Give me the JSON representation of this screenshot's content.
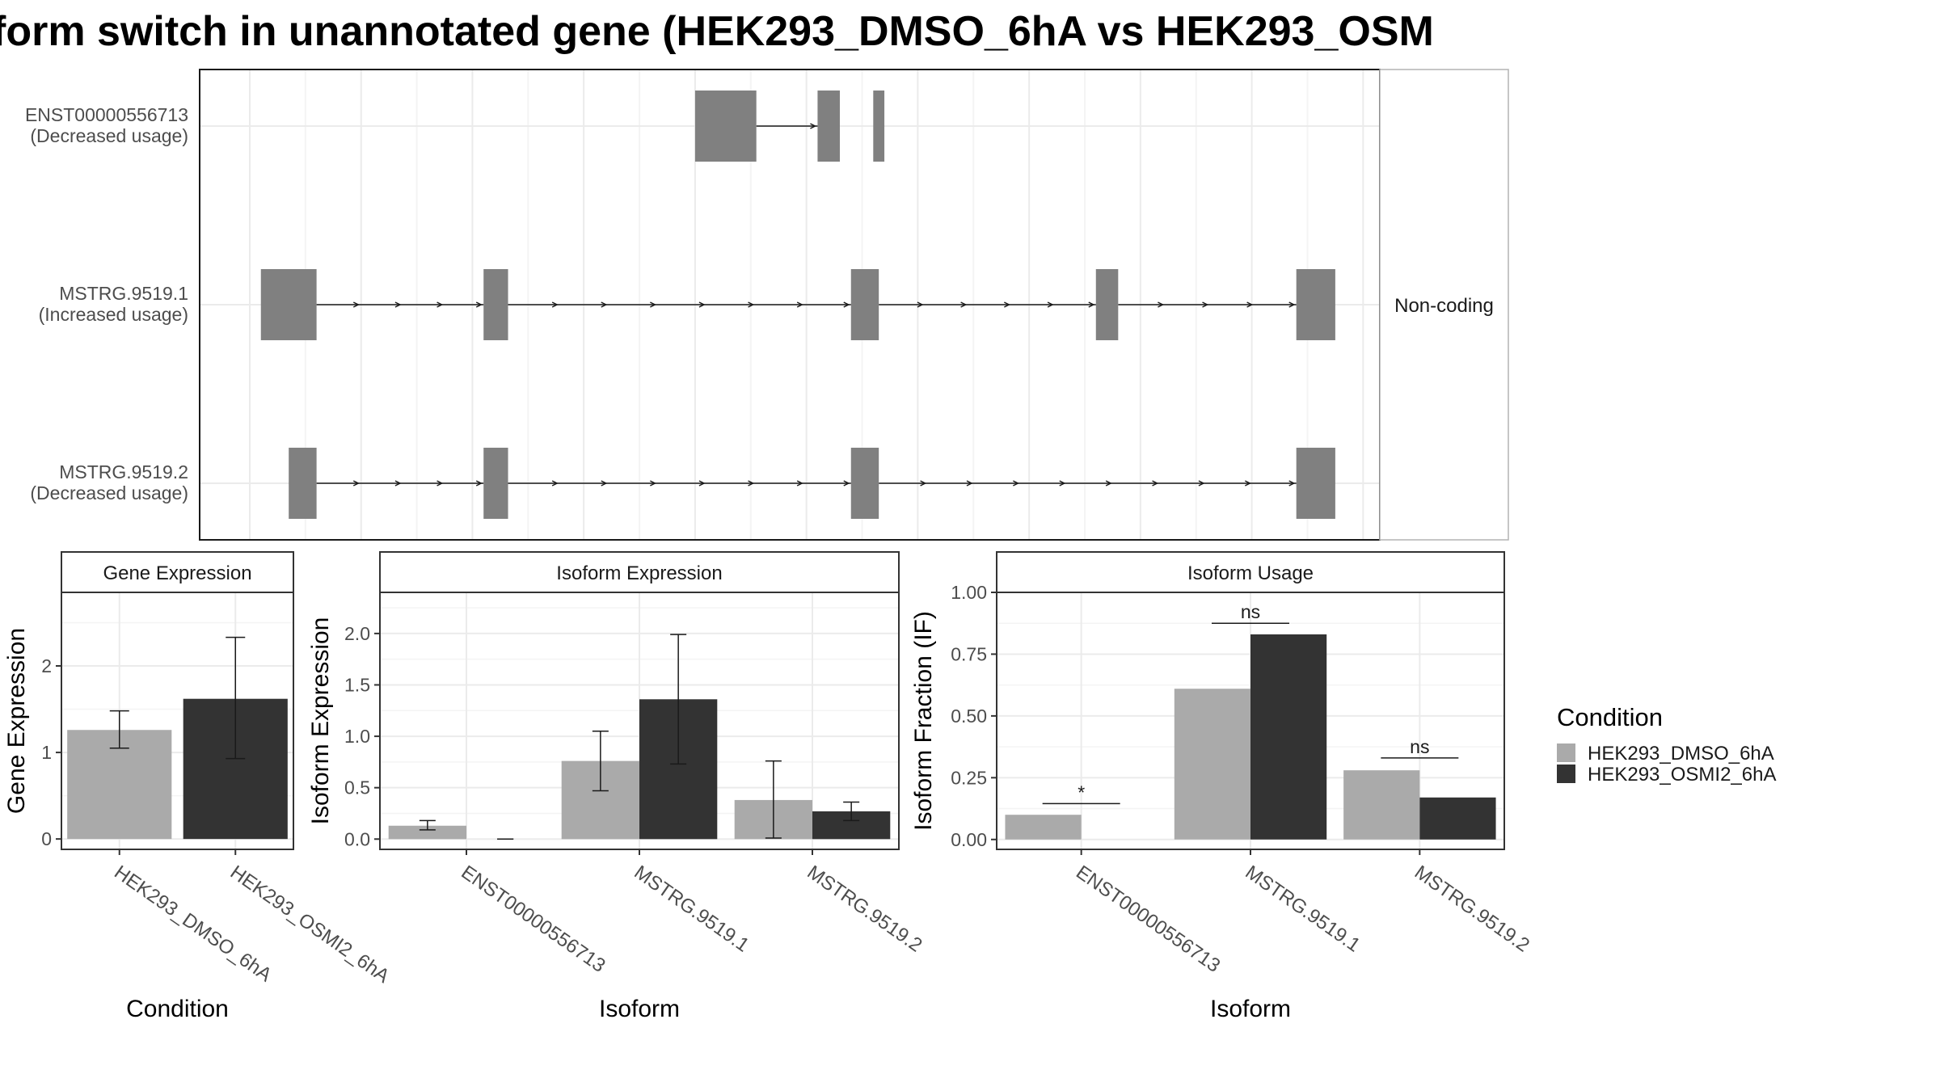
{
  "title": "form switch in unannotated gene (HEK293_DMSO_6hA vs HEK293_OSM",
  "colors": {
    "condition1": "#aaaaaa",
    "condition2": "#333333",
    "exon": "#808080",
    "panel_border": "#333333",
    "strip_fill": "#ffffff",
    "grid": "#ebebeb"
  },
  "chart_data": [
    {
      "type": "gene-structure",
      "strip_label": "Non-coding",
      "transcripts": [
        {
          "id": "ENST00000556713",
          "label_line1": "ENST00000556713",
          "label_line2": "(Decreased usage)",
          "exons": [
            [
              5.0,
              5.55
            ],
            [
              6.1,
              6.3
            ],
            [
              6.6,
              6.7
            ]
          ],
          "arrow_segments": [
            [
              5.55,
              6.1
            ]
          ]
        },
        {
          "id": "MSTRG.9519.1",
          "label_line1": "MSTRG.9519.1",
          "label_line2": "(Increased usage)",
          "exons": [
            [
              1.1,
              1.6
            ],
            [
              3.1,
              3.32
            ],
            [
              6.4,
              6.65
            ],
            [
              8.6,
              8.8
            ],
            [
              10.4,
              10.75
            ]
          ],
          "arrow_segments": [
            [
              1.6,
              3.1
            ],
            [
              3.32,
              6.4
            ],
            [
              6.65,
              8.6
            ],
            [
              8.8,
              10.4
            ]
          ]
        },
        {
          "id": "MSTRG.9519.2",
          "label_line1": "MSTRG.9519.2",
          "label_line2": "(Decreased usage)",
          "exons": [
            [
              1.35,
              1.6
            ],
            [
              3.1,
              3.32
            ],
            [
              6.4,
              6.65
            ],
            [
              10.4,
              10.75
            ]
          ],
          "arrow_segments": [
            [
              1.6,
              3.1
            ],
            [
              3.32,
              6.4
            ],
            [
              6.65,
              10.4
            ]
          ]
        }
      ],
      "xlim": [
        0.55,
        11.15
      ]
    },
    {
      "type": "bar",
      "strip_label": "Gene Expression",
      "xlabel": "Condition",
      "ylabel": "Gene Expression",
      "categories": [
        "HEK293_DMSO_6hA",
        "HEK293_OSMI2_6hA"
      ],
      "values": [
        1.26,
        1.62
      ],
      "errors": [
        [
          1.05,
          1.48
        ],
        [
          0.93,
          2.33
        ]
      ],
      "yticks": [
        "0",
        "1",
        "2"
      ],
      "ytick_values": [
        0,
        1,
        2
      ],
      "ylim": [
        -0.12,
        2.85
      ]
    },
    {
      "type": "bar",
      "strip_label": "Isoform Expression",
      "xlabel": "Isoform",
      "ylabel": "Isoform Expression",
      "categories": [
        "ENST00000556713",
        "MSTRG.9519.1",
        "MSTRG.9519.2"
      ],
      "series": [
        {
          "name": "HEK293_DMSO_6hA",
          "values": [
            0.13,
            0.76,
            0.38
          ],
          "errors": [
            [
              0.09,
              0.18
            ],
            [
              0.47,
              1.05
            ],
            [
              0.01,
              0.76
            ]
          ]
        },
        {
          "name": "HEK293_OSMI2_6hA",
          "values": [
            0.0,
            1.36,
            0.27
          ],
          "errors": [
            [
              0.0,
              0.0
            ],
            [
              0.73,
              1.99
            ],
            [
              0.18,
              0.36
            ]
          ]
        }
      ],
      "yticks": [
        "0.0",
        "0.5",
        "1.0",
        "1.5",
        "2.0"
      ],
      "ytick_values": [
        0,
        0.5,
        1.0,
        1.5,
        2.0
      ],
      "ylim": [
        -0.1,
        2.4
      ]
    },
    {
      "type": "bar",
      "strip_label": "Isoform Usage",
      "xlabel": "Isoform",
      "ylabel": "Isoform Fraction (IF)",
      "categories": [
        "ENST00000556713",
        "MSTRG.9519.1",
        "MSTRG.9519.2"
      ],
      "series": [
        {
          "name": "HEK293_DMSO_6hA",
          "values": [
            0.1,
            0.61,
            0.28
          ]
        },
        {
          "name": "HEK293_OSMI2_6hA",
          "values": [
            0.0,
            0.83,
            0.17
          ]
        }
      ],
      "significance": [
        "*",
        "ns",
        "ns"
      ],
      "significance_y": [
        0.145,
        0.875,
        0.33
      ],
      "yticks": [
        "0.00",
        "0.25",
        "0.50",
        "0.75",
        "1.00"
      ],
      "ytick_values": [
        0,
        0.25,
        0.5,
        0.75,
        1.0
      ],
      "ylim": [
        -0.04,
        1.0
      ]
    }
  ],
  "legend": {
    "title": "Condition",
    "items": [
      "HEK293_DMSO_6hA",
      "HEK293_OSMI2_6hA"
    ],
    "placement": "right"
  }
}
